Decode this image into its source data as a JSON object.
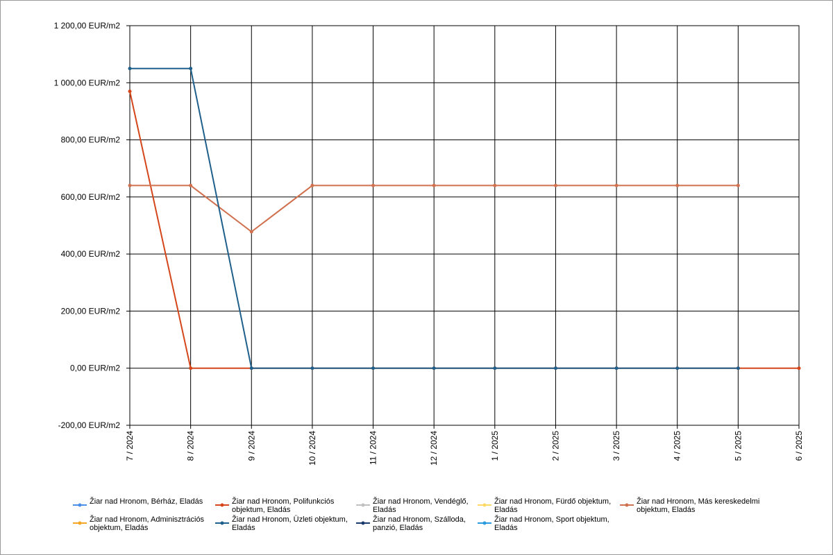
{
  "chart_data": {
    "type": "line",
    "categories": [
      "7 / 2024",
      "8 / 2024",
      "9 / 2024",
      "10 / 2024",
      "11 / 2024",
      "12 / 2024",
      "1 / 2025",
      "2 / 2025",
      "3 / 2025",
      "4 / 2025",
      "5 / 2025",
      "6 / 2025"
    ],
    "series": [
      {
        "name": "Žiar nad Hronom, Bérház, Eladás",
        "color": "#4a8fe7",
        "values": [
          null,
          null,
          null,
          null,
          null,
          null,
          null,
          null,
          null,
          null,
          null,
          null
        ]
      },
      {
        "name": "Žiar nad Hronom, Polifunkciós objektum, Eladás",
        "color": "#d4461a",
        "values": [
          970,
          0,
          0,
          0,
          0,
          0,
          0,
          0,
          0,
          0,
          0,
          0
        ]
      },
      {
        "name": "Žiar nad Hronom, Vendéglő, Eladás",
        "color": "#c0c0c0",
        "values": [
          null,
          null,
          null,
          null,
          null,
          null,
          null,
          null,
          null,
          null,
          null,
          null
        ]
      },
      {
        "name": "Žiar nad Hronom, Fürdő objektum, Eladás",
        "color": "#ffd966",
        "values": [
          null,
          null,
          null,
          null,
          null,
          null,
          null,
          null,
          null,
          null,
          null,
          null
        ]
      },
      {
        "name": "Žiar nad Hronom, Más kereskedelmi objektum, Eladás",
        "color": "#d0704e",
        "values": [
          640,
          640,
          478,
          640,
          640,
          640,
          640,
          640,
          640,
          640,
          640,
          null
        ]
      },
      {
        "name": "Žiar nad Hronom, Adminisztrációs objektum, Eladás",
        "color": "#f5a623",
        "values": [
          null,
          null,
          null,
          null,
          null,
          null,
          null,
          null,
          null,
          null,
          null,
          null
        ]
      },
      {
        "name": "Žiar nad Hronom, Üzleti objektum, Eladás",
        "color": "#1f5f8b",
        "values": [
          1050,
          1050,
          0,
          0,
          0,
          0,
          0,
          0,
          0,
          0,
          0,
          null
        ]
      },
      {
        "name": "Žiar nad Hronom, Szálloda, panzió, Eladás",
        "color": "#1a3a6b",
        "values": [
          null,
          null,
          null,
          null,
          null,
          null,
          null,
          null,
          null,
          null,
          null,
          null
        ]
      },
      {
        "name": "Žiar nad Hronom, Sport objektum, Eladás",
        "color": "#2b9be0",
        "values": [
          null,
          null,
          null,
          null,
          null,
          null,
          null,
          null,
          null,
          null,
          null,
          null
        ]
      }
    ],
    "ylim": [
      -200,
      1200
    ],
    "yticks": [
      {
        "value": -200,
        "label": "-200,00 EUR/m2"
      },
      {
        "value": 0,
        "label": "0,00 EUR/m2"
      },
      {
        "value": 200,
        "label": "200,00 EUR/m2"
      },
      {
        "value": 400,
        "label": "400,00 EUR/m2"
      },
      {
        "value": 600,
        "label": "600,00 EUR/m2"
      },
      {
        "value": 800,
        "label": "800,00 EUR/m2"
      },
      {
        "value": 1000,
        "label": "1 000,00 EUR/m2"
      },
      {
        "value": 1200,
        "label": "1 200,00 EUR/m2"
      }
    ],
    "grid": true
  }
}
